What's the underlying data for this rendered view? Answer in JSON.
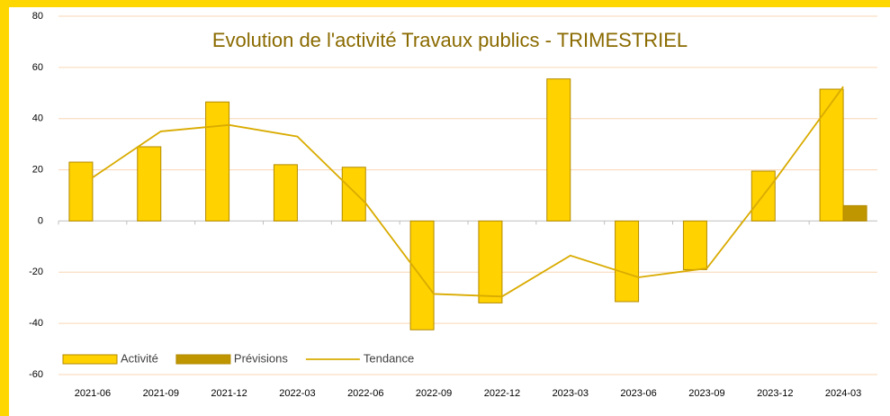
{
  "chart_data": {
    "type": "bar-line",
    "title": "Evolution de l'activité Travaux publics - TRIMESTRIEL",
    "categories": [
      "2021-06",
      "2021-09",
      "2021-12",
      "2022-03",
      "2022-06",
      "2022-09",
      "2022-12",
      "2023-03",
      "2023-06",
      "2023-09",
      "2023-12",
      "2024-03"
    ],
    "series": [
      {
        "name": "Activité",
        "kind": "bar",
        "color": "#ffd200",
        "values": [
          23,
          29,
          46.5,
          22,
          21,
          -42.5,
          -32,
          55.5,
          -31.5,
          -19,
          19.5,
          51.5
        ]
      },
      {
        "name": "Prévisions",
        "kind": "bar",
        "color": "#bf9500",
        "values": [
          null,
          null,
          null,
          null,
          null,
          null,
          null,
          null,
          null,
          null,
          null,
          6
        ]
      },
      {
        "name": "Tendance",
        "kind": "line",
        "color": "#d9ab00",
        "values": [
          17,
          35,
          37.5,
          33,
          7,
          -28.5,
          -29.5,
          -13.5,
          -22,
          -18.5,
          16,
          52.5
        ]
      }
    ],
    "ylim": [
      -60,
      80
    ],
    "yticks": [
      -60,
      -40,
      -20,
      0,
      20,
      40,
      60,
      80
    ],
    "grid": true,
    "legend": "bottom-left"
  }
}
